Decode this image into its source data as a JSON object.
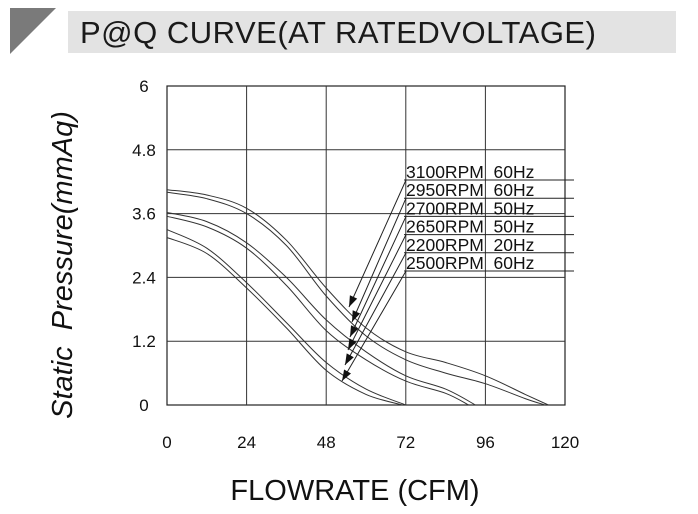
{
  "chart_data": {
    "type": "line",
    "title": "P@Q CURVE(AT RATEDVOLTAGE)",
    "xlabel": "FLOWRATE (CFM)",
    "ylabel": "Static  Pressure(mmAq)",
    "xlim": [
      0,
      120
    ],
    "ylim": [
      0,
      6
    ],
    "xticks": [
      "0",
      "24",
      "48",
      "72",
      "96",
      "120"
    ],
    "yticks": [
      "0",
      "1.2",
      "2.4",
      "3.6",
      "4.8",
      "6"
    ],
    "grid": true,
    "series": [
      {
        "name": "3100RPM  60Hz",
        "x": [
          0,
          12,
          24,
          36,
          48,
          60,
          72,
          84,
          96,
          108,
          115
        ],
        "y": [
          4.05,
          3.95,
          3.7,
          3.1,
          2.2,
          1.45,
          1.0,
          0.8,
          0.55,
          0.2,
          0
        ]
      },
      {
        "name": "2950RPM  60Hz",
        "x": [
          0,
          12,
          24,
          36,
          48,
          60,
          72,
          84,
          96,
          108,
          114
        ],
        "y": [
          4.0,
          3.88,
          3.6,
          3.0,
          2.05,
          1.3,
          0.85,
          0.6,
          0.4,
          0.12,
          0
        ]
      },
      {
        "name": "2700RPM  50Hz",
        "x": [
          0,
          12,
          24,
          36,
          48,
          60,
          72,
          84,
          93
        ],
        "y": [
          3.62,
          3.45,
          3.05,
          2.4,
          1.6,
          1.0,
          0.55,
          0.3,
          0
        ]
      },
      {
        "name": "2650RPM  50Hz",
        "x": [
          0,
          12,
          24,
          36,
          48,
          60,
          72,
          84,
          91
        ],
        "y": [
          3.55,
          3.35,
          2.95,
          2.25,
          1.4,
          0.85,
          0.45,
          0.22,
          0
        ]
      },
      {
        "name": "2200RPM  20Hz",
        "x": [
          0,
          12,
          24,
          36,
          48,
          60,
          72
        ],
        "y": [
          3.3,
          2.95,
          2.3,
          1.55,
          0.8,
          0.3,
          0
        ]
      },
      {
        "name": "2500RPM  60Hz",
        "x": [
          0,
          12,
          24,
          36,
          48,
          60,
          71
        ],
        "y": [
          3.15,
          2.85,
          2.2,
          1.45,
          0.65,
          0.2,
          0
        ]
      }
    ]
  }
}
